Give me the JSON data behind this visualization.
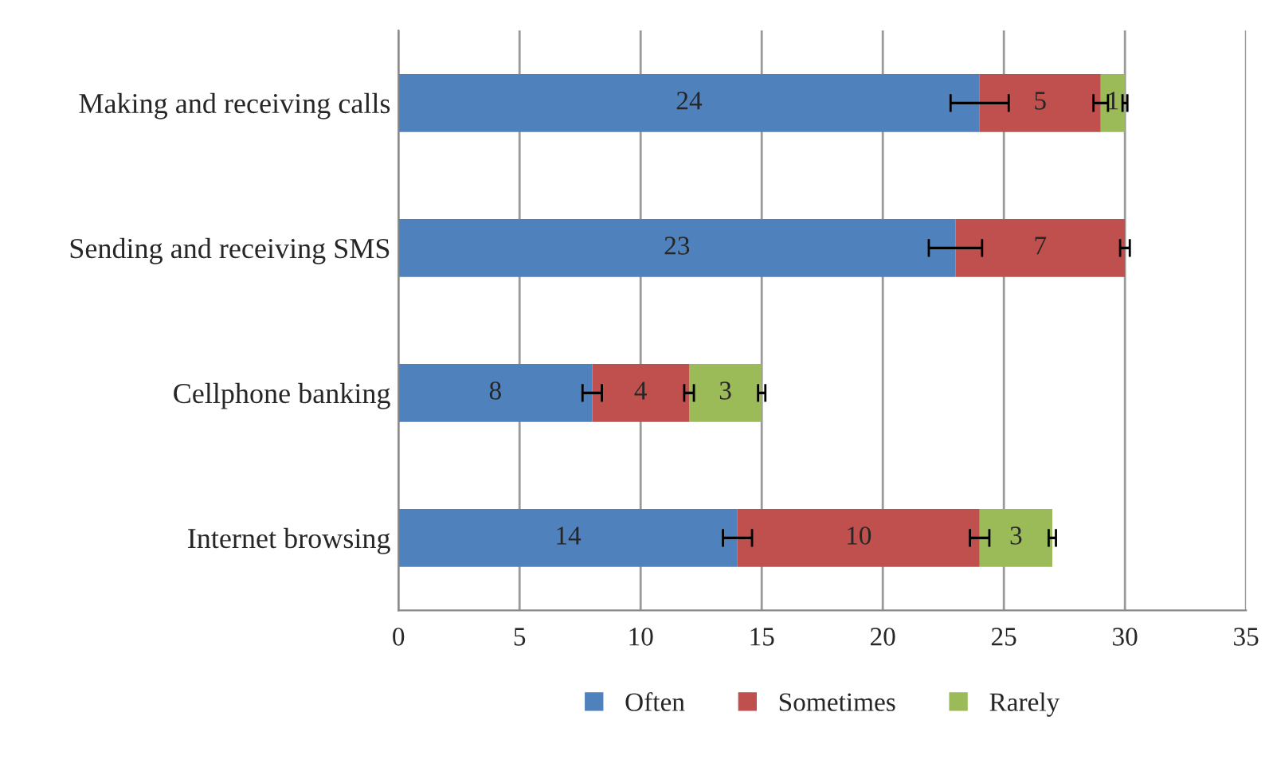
{
  "chart_data": {
    "type": "bar",
    "orientation": "horizontal",
    "stacked": true,
    "categories": [
      "Making and receiving calls",
      "Sending and receiving SMS",
      "Cellphone banking",
      "Internet browsing"
    ],
    "series": [
      {
        "name": "Often",
        "color": "#4f81bd",
        "values": [
          24,
          23,
          8,
          14
        ],
        "errors": [
          1.2,
          1.1,
          0.4,
          0.6
        ]
      },
      {
        "name": "Sometimes",
        "color": "#c0504d",
        "values": [
          5,
          7,
          4,
          10
        ],
        "errors": [
          0.3,
          0.2,
          0.2,
          0.4
        ]
      },
      {
        "name": "Rarely",
        "color": "#9bbb59",
        "values": [
          1,
          null,
          3,
          3
        ],
        "errors": [
          0.1,
          null,
          0.15,
          0.15
        ]
      }
    ],
    "xlim": [
      0,
      35
    ],
    "xticks": [
      0,
      5,
      10,
      15,
      20,
      25,
      30,
      35
    ],
    "grid": "x",
    "legend": "bottom",
    "data_labels": true
  }
}
